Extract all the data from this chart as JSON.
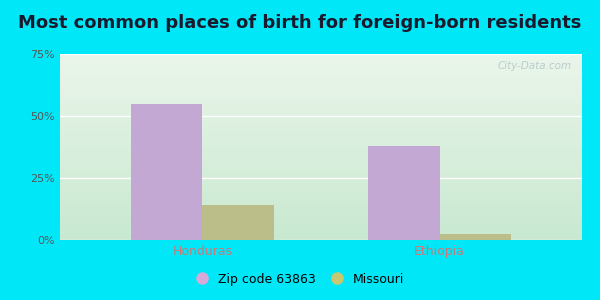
{
  "title": "Most common places of birth for foreign-born residents",
  "categories": [
    "Honduras",
    "Ethiopia"
  ],
  "series": {
    "Zip code 63863": [
      55.0,
      38.0
    ],
    "Missouri": [
      14.0,
      2.5
    ]
  },
  "series_colors": {
    "Zip code 63863": "#c4a8d4",
    "Missouri": "#bbbe88"
  },
  "ylim": [
    0,
    75
  ],
  "yticks": [
    0,
    25,
    50,
    75
  ],
  "ytick_labels": [
    "0%",
    "25%",
    "50%",
    "75%"
  ],
  "xlabel_color": "#cc7777",
  "title_fontsize": 13,
  "bar_width": 0.3,
  "background_outer": "#00e8f8",
  "background_grad_bottom": "#c8e8d0",
  "background_grad_top": "#eaf5ea",
  "grid_color": "#ffffff",
  "watermark": "City-Data.com",
  "legend_colors": {
    "Zip code 63863": "#d8a8d8",
    "Missouri": "#c8c870"
  }
}
